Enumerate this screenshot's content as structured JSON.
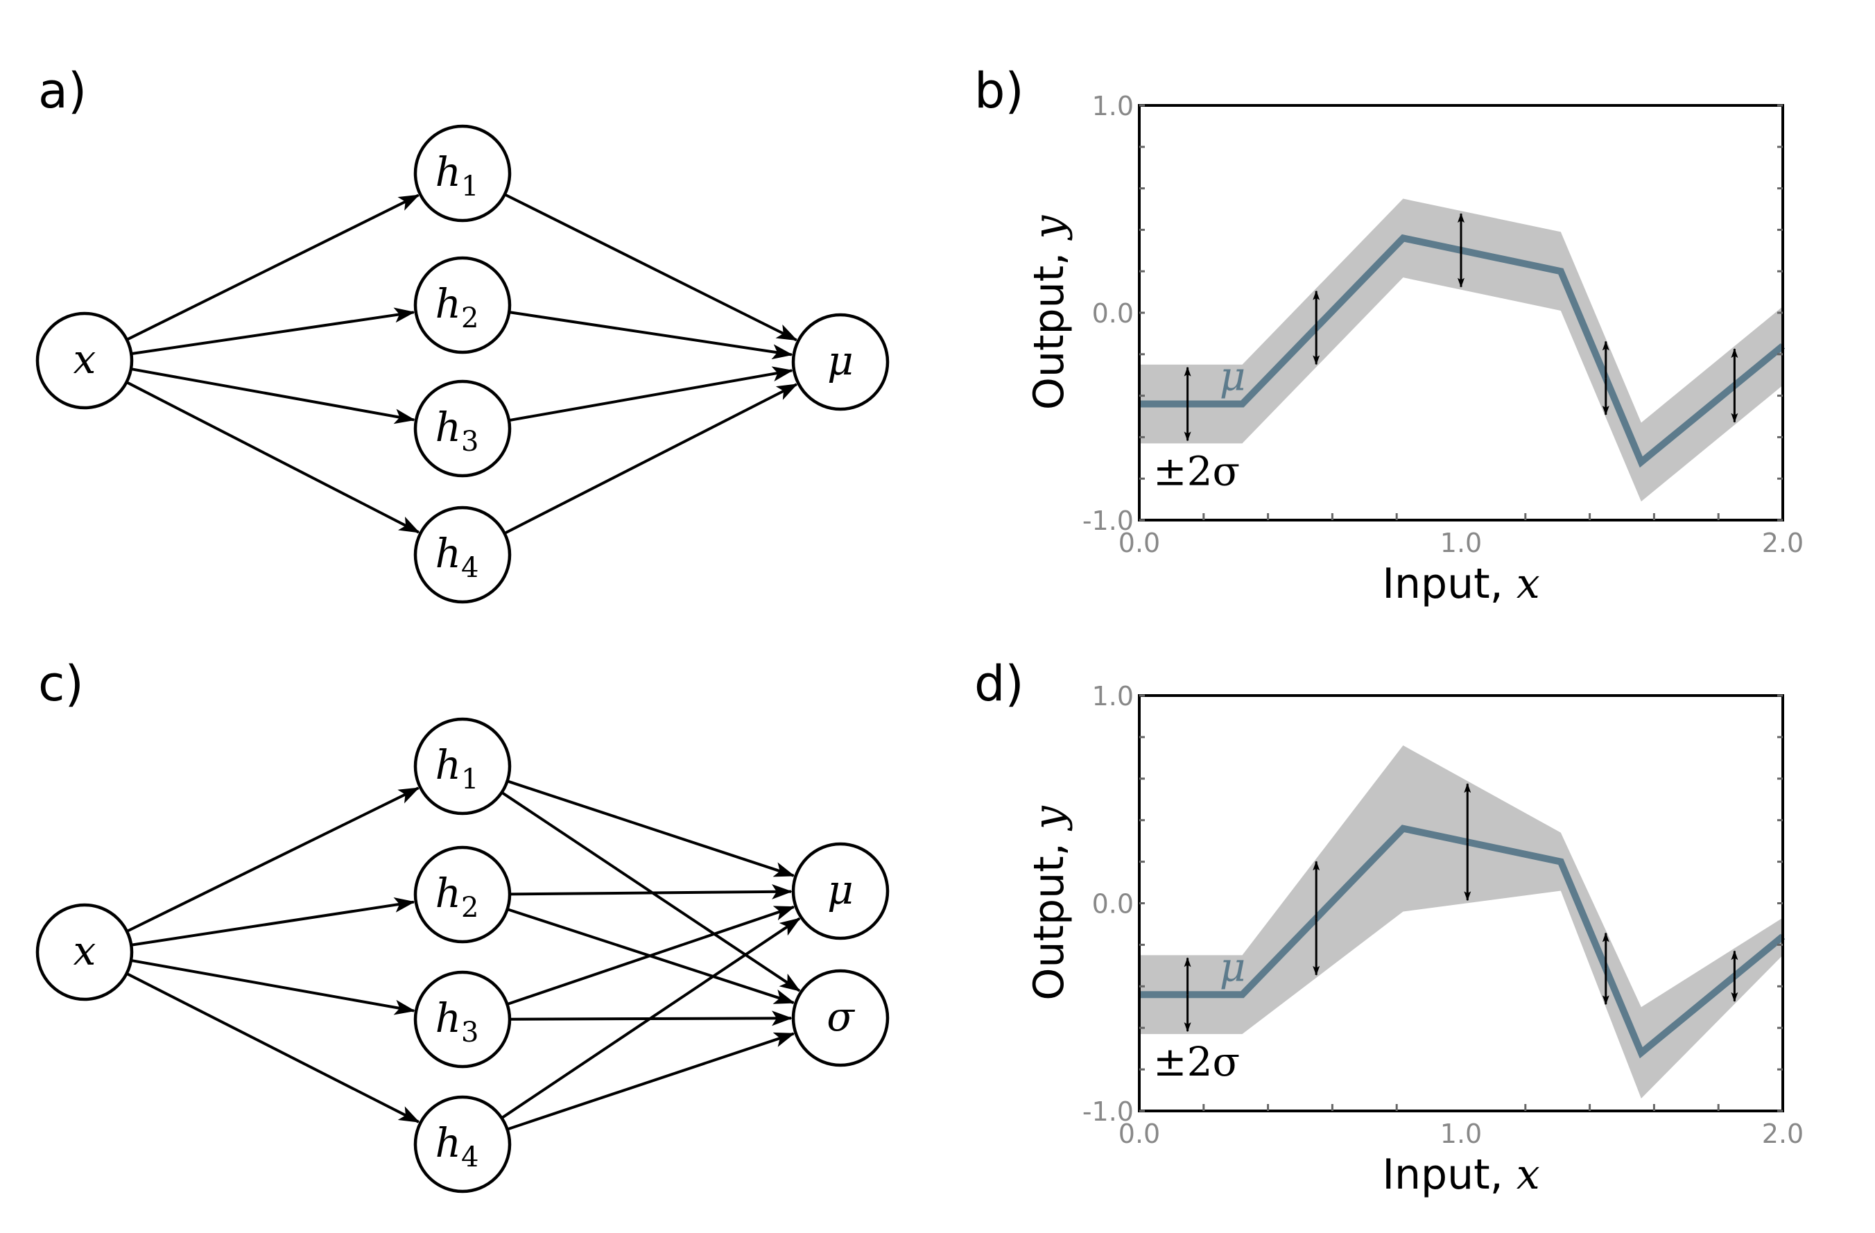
{
  "panels": {
    "a": {
      "letter": "a)",
      "input": {
        "label": "x"
      },
      "hidden": [
        {
          "base": "h",
          "sub": "1"
        },
        {
          "base": "h",
          "sub": "2"
        },
        {
          "base": "h",
          "sub": "3"
        },
        {
          "base": "h",
          "sub": "4"
        }
      ],
      "outputs": [
        {
          "label": "μ"
        }
      ]
    },
    "b": {
      "letter": "b)"
    },
    "c": {
      "letter": "c)",
      "input": {
        "label": "x"
      },
      "hidden": [
        {
          "base": "h",
          "sub": "1"
        },
        {
          "base": "h",
          "sub": "2"
        },
        {
          "base": "h",
          "sub": "3"
        },
        {
          "base": "h",
          "sub": "4"
        }
      ],
      "outputs": [
        {
          "label": "μ"
        },
        {
          "label": "σ"
        }
      ]
    },
    "d": {
      "letter": "d)"
    }
  },
  "chart_data": [
    {
      "panel": "b",
      "type": "line",
      "xlabel": "Input, ",
      "xlabel_var": "x",
      "ylabel": "Output, ",
      "ylabel_var": "y",
      "xlim": [
        0.0,
        2.0
      ],
      "ylim": [
        -1.0,
        1.0
      ],
      "xticks": [
        "0.0",
        "1.0",
        "2.0"
      ],
      "yticks": [
        "1.0",
        "0.0",
        "-1.0"
      ],
      "mean_label": "μ",
      "band_label": "±2σ",
      "series": [
        {
          "x": [
            0.0,
            0.32,
            0.82,
            1.31,
            1.56,
            2.0
          ],
          "mean": [
            -0.44,
            -0.44,
            0.36,
            0.2,
            -0.72,
            -0.16
          ],
          "sigma": [
            0.095,
            0.095,
            0.095,
            0.095,
            0.095,
            0.095
          ]
        }
      ],
      "error_arrows_x": [
        0.15,
        0.55,
        1.0,
        1.45,
        1.85
      ],
      "colors": {
        "mean": "#5d7b8c",
        "band": "#c4c4c4"
      }
    },
    {
      "panel": "d",
      "type": "line",
      "xlabel": "Input, ",
      "xlabel_var": "x",
      "ylabel": "Output, ",
      "ylabel_var": "y",
      "xlim": [
        0.0,
        2.0
      ],
      "ylim": [
        -1.0,
        1.0
      ],
      "xticks": [
        "0.0",
        "1.0",
        "2.0"
      ],
      "yticks": [
        "1.0",
        "0.0",
        "-1.0"
      ],
      "mean_label": "μ",
      "band_label": "±2σ",
      "series": [
        {
          "x": [
            0.0,
            0.32,
            0.82,
            1.31,
            1.56,
            2.0
          ],
          "mean": [
            -0.44,
            -0.44,
            0.36,
            0.2,
            -0.72,
            -0.16
          ],
          "sigma": [
            0.095,
            0.095,
            0.2,
            0.07,
            0.11,
            0.045
          ]
        }
      ],
      "error_arrows_x": [
        0.15,
        0.55,
        1.02,
        1.45,
        1.85
      ],
      "colors": {
        "mean": "#5d7b8c",
        "band": "#c4c4c4"
      }
    }
  ]
}
